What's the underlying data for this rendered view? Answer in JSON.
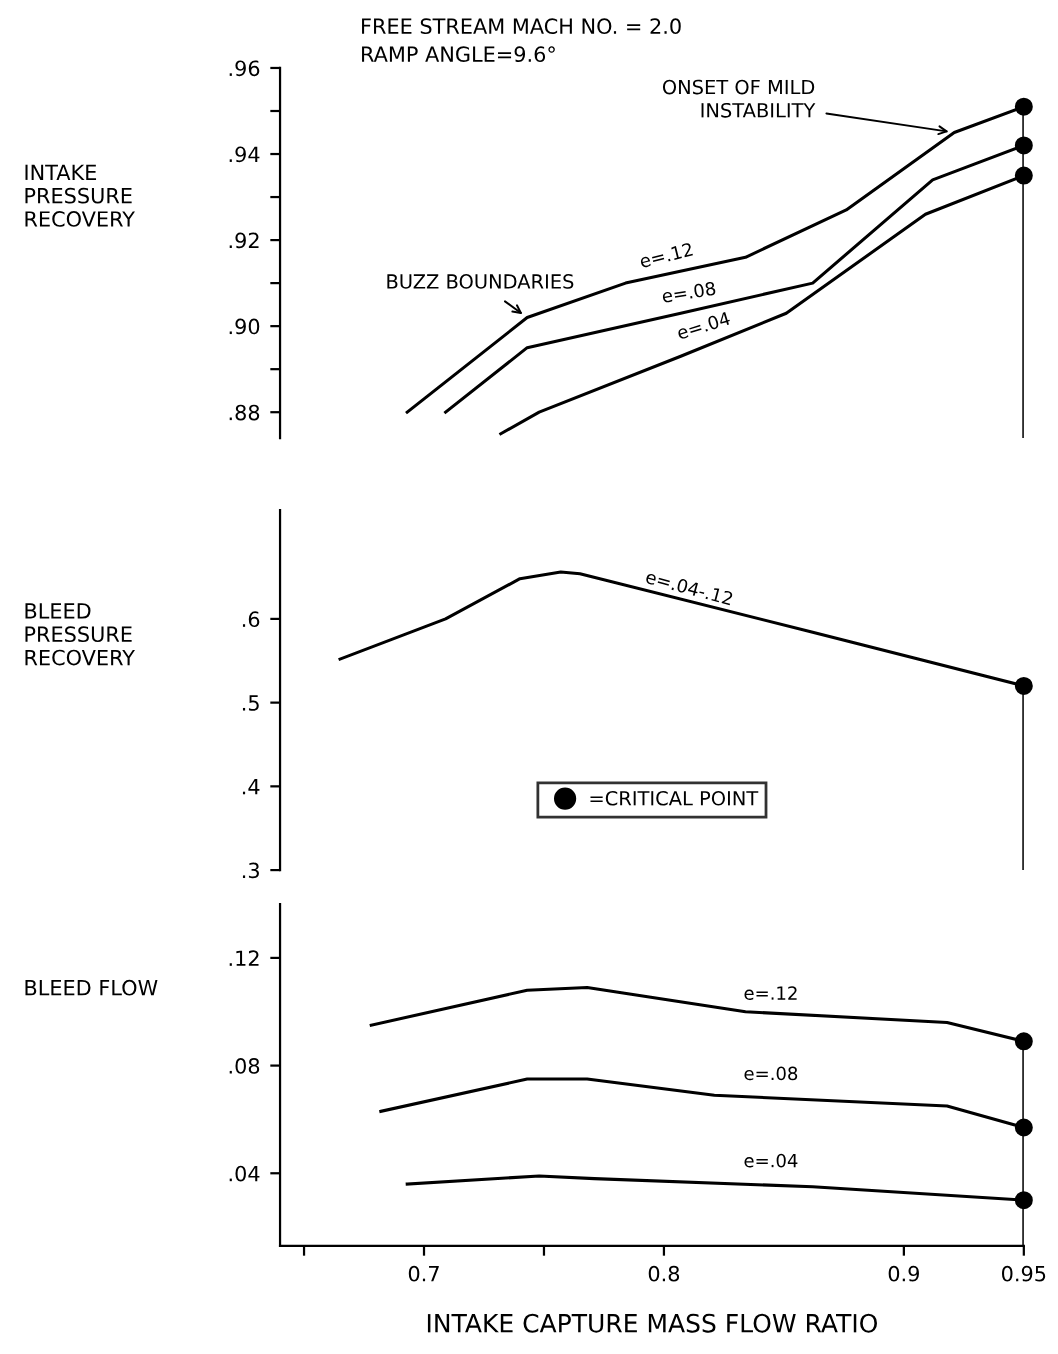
{
  "chart_data": [
    {
      "type": "line",
      "title": "FREE STREAM MACH NO. = 2.0",
      "subtitle": "RAMP ANGLE=9.6°",
      "ylabel": "INTAKE\nPRESSURE\nRECOVERY",
      "xlim": [
        0.64,
        0.95
      ],
      "ylim": [
        0.874,
        0.96
      ],
      "tick_labels": "y",
      "grid": false,
      "legend": false,
      "line_style": "solid",
      "yticks": [
        {
          "value": 0.88,
          "label": ".88"
        },
        {
          "value": 0.89,
          "label": null
        },
        {
          "value": 0.9,
          "label": ".90"
        },
        {
          "value": 0.91,
          "label": null
        },
        {
          "value": 0.92,
          "label": ".92"
        },
        {
          "value": 0.93,
          "label": null
        },
        {
          "value": 0.94,
          "label": ".94"
        },
        {
          "value": 0.95,
          "label": null
        },
        {
          "value": 0.96,
          "label": ".96"
        }
      ],
      "series": [
        {
          "color": "#000000",
          "x": [
            0.693,
            0.743,
            0.784,
            0.834,
            0.876,
            0.921,
            0.95
          ],
          "values": [
            0.88,
            0.902,
            0.91,
            0.916,
            0.927,
            0.945,
            0.951
          ]
        },
        {
          "color": "#000000",
          "x": [
            0.709,
            0.743,
            0.807,
            0.862,
            0.912,
            0.95
          ],
          "values": [
            0.88,
            0.895,
            0.903,
            0.91,
            0.934,
            0.942
          ]
        },
        {
          "color": "#000000",
          "x": [
            0.732,
            0.748,
            0.807,
            0.851,
            0.909,
            0.95
          ],
          "values": [
            0.875,
            0.88,
            0.893,
            0.903,
            0.926,
            0.935
          ]
        },
        {
          "type": "scatter",
          "marker": "circle",
          "color": "#000000",
          "x": [
            0.95,
            0.95,
            0.95
          ],
          "values": [
            0.951,
            0.942,
            0.935
          ]
        }
      ],
      "ref_lines": [
        {
          "axis": "x",
          "value": 0.95,
          "color": "#000000"
        }
      ],
      "annotations": [
        "e=.12",
        "e=.08",
        "e=.04",
        {
          "text": "BUZZ BOUNDARIES",
          "x": 0.743,
          "y": 0.902
        },
        {
          "text": "ONSET OF MILD\nINSTABILITY",
          "x": 0.921,
          "y": 0.945
        }
      ]
    },
    {
      "type": "line",
      "ylabel": "BLEED\nPRESSURE\nRECOVERY",
      "xlim": [
        0.64,
        0.95
      ],
      "ylim": [
        0.3,
        0.73
      ],
      "tick_labels": "y",
      "grid": false,
      "legend": "lower center",
      "line_style": "solid",
      "yticks": [
        {
          "value": 0.3,
          "label": ".3"
        },
        {
          "value": 0.4,
          "label": ".4"
        },
        {
          "value": 0.5,
          "label": ".5"
        },
        {
          "value": 0.6,
          "label": ".6"
        }
      ],
      "series": [
        {
          "color": "#000000",
          "x": [
            0.665,
            0.709,
            0.74,
            0.757,
            0.765,
            0.862,
            0.95
          ],
          "values": [
            0.552,
            0.6,
            0.648,
            0.656,
            0.654,
            0.584,
            0.52
          ]
        },
        {
          "type": "scatter",
          "marker": "circle",
          "name": "=CRITICAL POINT",
          "color": "#000000",
          "x": [
            0.95
          ],
          "values": [
            0.52
          ]
        }
      ],
      "ref_lines": [
        {
          "axis": "x",
          "value": 0.95,
          "color": "#000000"
        }
      ],
      "annotations": [
        "e=.04-.12"
      ]
    },
    {
      "type": "line",
      "ylabel": "BLEED FLOW",
      "xlabel": "INTAKE CAPTURE MASS FLOW RATIO",
      "xlim": [
        0.64,
        0.95
      ],
      "ylim": [
        0.013,
        0.14
      ],
      "grid": false,
      "legend": false,
      "line_style": "solid",
      "xticks": [
        {
          "value": 0.65,
          "label": null
        },
        0.7,
        {
          "value": 0.75,
          "label": null
        },
        0.8,
        0.9,
        0.95
      ],
      "yticks": [
        {
          "value": 0.04,
          "label": ".04"
        },
        {
          "value": 0.08,
          "label": ".08"
        },
        {
          "value": 0.12,
          "label": ".12"
        }
      ],
      "series": [
        {
          "color": "#000000",
          "x": [
            0.678,
            0.743,
            0.768,
            0.834,
            0.918,
            0.95
          ],
          "values": [
            0.095,
            0.108,
            0.109,
            0.1,
            0.096,
            0.089
          ]
        },
        {
          "color": "#000000",
          "x": [
            0.682,
            0.743,
            0.768,
            0.821,
            0.918,
            0.95
          ],
          "values": [
            0.063,
            0.075,
            0.075,
            0.069,
            0.065,
            0.057
          ]
        },
        {
          "color": "#000000",
          "x": [
            0.693,
            0.748,
            0.771,
            0.862,
            0.95
          ],
          "values": [
            0.036,
            0.039,
            0.038,
            0.035,
            0.03
          ]
        },
        {
          "type": "scatter",
          "marker": "circle",
          "color": "#000000",
          "x": [
            0.95,
            0.95,
            0.95
          ],
          "values": [
            0.089,
            0.057,
            0.03
          ]
        }
      ],
      "ref_lines": [
        {
          "axis": "x",
          "value": 0.95,
          "color": "#000000"
        }
      ],
      "annotations": [
        "e=.12",
        "e=.08",
        "e=.04"
      ]
    }
  ]
}
